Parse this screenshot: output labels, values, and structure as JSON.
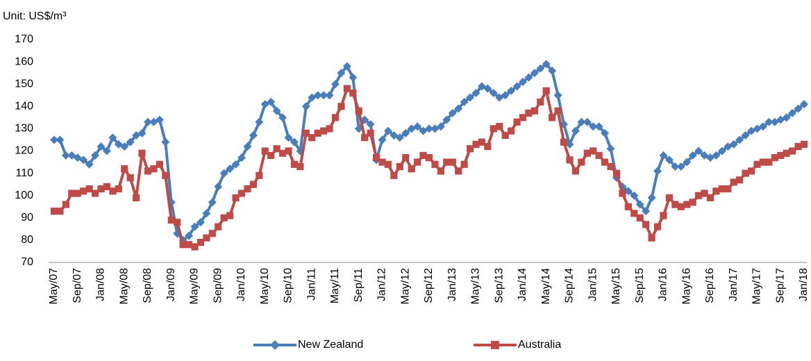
{
  "chart_data": {
    "type": "line",
    "unit_label": "Unit: US$/m³",
    "categories": [
      "May/07",
      null,
      null,
      null,
      "Sep/07",
      null,
      null,
      null,
      "Jan/08",
      null,
      null,
      null,
      "May/08",
      null,
      null,
      null,
      "Sep/08",
      null,
      null,
      null,
      "Jan/09",
      null,
      null,
      null,
      "May/09",
      null,
      null,
      null,
      "Sep/09",
      null,
      null,
      null,
      "Jan/10",
      null,
      null,
      null,
      "May/10",
      null,
      null,
      null,
      "Sep/10",
      null,
      null,
      null,
      "Jan/11",
      null,
      null,
      null,
      "May/11",
      null,
      null,
      null,
      "Sep/11",
      null,
      null,
      null,
      "Jan/12",
      null,
      null,
      null,
      "May/12",
      null,
      null,
      null,
      "Sep/12",
      null,
      null,
      null,
      "Jan/13",
      null,
      null,
      null,
      "May/13",
      null,
      null,
      null,
      "Sep/13",
      null,
      null,
      null,
      "Jan/14",
      null,
      null,
      null,
      "May/14",
      null,
      null,
      null,
      "Sep/14",
      null,
      null,
      null,
      "Jan/15",
      null,
      null,
      null,
      "May/15",
      null,
      null,
      null,
      "Sep/15",
      null,
      null,
      null,
      "Jan/16",
      null,
      null,
      null,
      "May/16",
      null,
      null,
      null,
      "Sep/16",
      null,
      null,
      null,
      "Jan/17",
      null,
      null,
      null,
      "May/17",
      null,
      null,
      null,
      "Sep/17",
      null,
      null,
      null,
      "Jan/18"
    ],
    "series": [
      {
        "name": "New Zealand",
        "color": "#4a7ebb",
        "marker": "diamond",
        "values": [
          125,
          125,
          118,
          118,
          117,
          116,
          114,
          118,
          122,
          120,
          126,
          123,
          122,
          124,
          127,
          128,
          133,
          133,
          134,
          124,
          97,
          83,
          80,
          82,
          86,
          88,
          92,
          97,
          104,
          110,
          112,
          114,
          117,
          122,
          127,
          133,
          141,
          142,
          138,
          135,
          126,
          124,
          120,
          140,
          144,
          145,
          145,
          145,
          150,
          155,
          158,
          153,
          130,
          134,
          132,
          116,
          125,
          129,
          127,
          126,
          128,
          130,
          131,
          129,
          130,
          130,
          131,
          134,
          137,
          139,
          142,
          144,
          146,
          149,
          148,
          146,
          144,
          145,
          147,
          149,
          151,
          153,
          155,
          157,
          159,
          156,
          145,
          132,
          123,
          129,
          133,
          133,
          131,
          131,
          128,
          121,
          108,
          104,
          102,
          100,
          96,
          93,
          99,
          111,
          118,
          116,
          113,
          113,
          115,
          118,
          120,
          118,
          117,
          118,
          120,
          122,
          123,
          125,
          127,
          129,
          130,
          131,
          133,
          133,
          134,
          135,
          137,
          139,
          141
        ]
      },
      {
        "name": "Australia",
        "color": "#be4b48",
        "marker": "square",
        "values": [
          93,
          93,
          96,
          101,
          101,
          102,
          103,
          101,
          103,
          104,
          102,
          103,
          112,
          108,
          99,
          119,
          111,
          112,
          114,
          109,
          89,
          88,
          78,
          78,
          77,
          79,
          81,
          83,
          86,
          90,
          91,
          99,
          101,
          103,
          105,
          109,
          120,
          118,
          121,
          119,
          120,
          114,
          113,
          128,
          126,
          128,
          129,
          130,
          135,
          140,
          148,
          146,
          138,
          126,
          128,
          117,
          115,
          114,
          109,
          113,
          117,
          112,
          115,
          118,
          117,
          114,
          111,
          115,
          115,
          111,
          114,
          121,
          123,
          124,
          122,
          130,
          131,
          127,
          129,
          133,
          135,
          137,
          138,
          142,
          147,
          135,
          138,
          124,
          116,
          111,
          115,
          119,
          120,
          118,
          115,
          113,
          110,
          101,
          95,
          92,
          90,
          87,
          81,
          86,
          91,
          99,
          96,
          95,
          96,
          97,
          100,
          101,
          99,
          102,
          103,
          103,
          106,
          107,
          110,
          111,
          114,
          115,
          115,
          117,
          118,
          119,
          120,
          122,
          123
        ]
      }
    ],
    "ylim": [
      70,
      170
    ],
    "yticks": [
      70,
      80,
      90,
      100,
      110,
      120,
      130,
      140,
      150,
      160,
      170
    ],
    "grid": false,
    "legend": "bottom"
  }
}
